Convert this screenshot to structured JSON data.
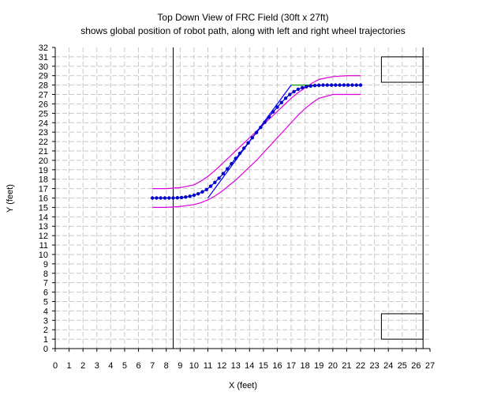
{
  "chart_data": {
    "type": "line",
    "title": "Top Down View of FRC Field (30ft x 27ft)",
    "subtitle": "shows global position of robot path, along with left and right wheel trajectories",
    "xlabel": "X (feet)",
    "ylabel": "Y (feet)",
    "xlim": [
      0,
      27
    ],
    "ylim": [
      0,
      32
    ],
    "xticks": [
      0,
      1,
      2,
      3,
      4,
      5,
      6,
      7,
      8,
      9,
      10,
      11,
      12,
      13,
      14,
      15,
      16,
      17,
      18,
      19,
      20,
      21,
      22,
      23,
      24,
      25,
      26,
      27
    ],
    "yticks": [
      0,
      1,
      2,
      3,
      4,
      5,
      6,
      7,
      8,
      9,
      10,
      11,
      12,
      13,
      14,
      15,
      16,
      17,
      18,
      19,
      20,
      21,
      22,
      23,
      24,
      25,
      26,
      27,
      28,
      29,
      30,
      31,
      32
    ],
    "grid": true,
    "colors": {
      "path": "#0000cc",
      "wheels": "#dd00dd",
      "waypoint_line_blue": "#0000ff",
      "waypoint_line_green": "#009900",
      "field": "#000000",
      "grid": "#c8c8c8"
    },
    "series": [
      {
        "role": "robot-path",
        "x": [
          7.0,
          7.3,
          7.6,
          7.9,
          8.2,
          8.5,
          8.8,
          9.1,
          9.4,
          9.7,
          10.0,
          10.3,
          10.6,
          10.9,
          11.2,
          11.5,
          11.8,
          12.1,
          12.4,
          12.7,
          13.0,
          13.3,
          13.6,
          13.9,
          14.2,
          14.5,
          14.8,
          15.1,
          15.4,
          15.7,
          16.0,
          16.3,
          16.6,
          16.9,
          17.2,
          17.5,
          17.8,
          18.1,
          18.4,
          18.7,
          19.0,
          19.3,
          19.6,
          19.9,
          20.2,
          20.5,
          20.8,
          21.1,
          21.4,
          21.7,
          22.0
        ],
        "y": [
          16.0,
          16.0,
          16.0,
          16.0,
          16.0,
          16.0,
          16.02,
          16.05,
          16.1,
          16.18,
          16.3,
          16.45,
          16.65,
          16.9,
          17.25,
          17.65,
          18.1,
          18.6,
          19.1,
          19.65,
          20.2,
          20.75,
          21.3,
          21.85,
          22.4,
          22.95,
          23.5,
          24.05,
          24.6,
          25.15,
          25.65,
          26.15,
          26.6,
          27.0,
          27.3,
          27.55,
          27.72,
          27.83,
          27.9,
          27.95,
          27.98,
          28.0,
          28.0,
          28.0,
          28.0,
          28.0,
          28.0,
          28.0,
          28.0,
          28.0,
          28.0
        ]
      },
      {
        "role": "left-wheel",
        "x": [
          7.0,
          8.0,
          9.0,
          10.0,
          10.5,
          11.0,
          11.5,
          12.0,
          12.5,
          13.0,
          13.5,
          14.0,
          14.5,
          15.0,
          15.5,
          16.0,
          16.5,
          17.0,
          17.5,
          18.0,
          18.5,
          19.0,
          20.0,
          21.0,
          22.0
        ],
        "y": [
          17.0,
          17.0,
          17.1,
          17.4,
          17.8,
          18.3,
          18.9,
          19.6,
          20.3,
          21.0,
          21.7,
          22.4,
          23.1,
          23.8,
          24.5,
          25.2,
          25.9,
          26.6,
          27.2,
          27.7,
          28.2,
          28.6,
          28.9,
          29.0,
          29.0
        ]
      },
      {
        "role": "right-wheel",
        "x": [
          7.0,
          8.0,
          9.0,
          10.0,
          10.5,
          11.0,
          11.5,
          12.0,
          12.5,
          13.0,
          13.5,
          14.0,
          14.5,
          15.0,
          15.5,
          16.0,
          16.5,
          17.0,
          17.5,
          18.0,
          18.5,
          19.0,
          20.0,
          21.0,
          22.0
        ],
        "y": [
          15.0,
          15.0,
          15.1,
          15.3,
          15.5,
          15.8,
          16.2,
          16.7,
          17.3,
          17.9,
          18.6,
          19.3,
          20.0,
          20.8,
          21.6,
          22.4,
          23.2,
          24.0,
          24.8,
          25.5,
          26.1,
          26.6,
          27.0,
          27.0,
          27.0
        ]
      }
    ],
    "waypoint_lines": [
      {
        "role": "blue-segment",
        "x": [
          11.0,
          17.0
        ],
        "y": [
          16.0,
          28.0
        ]
      },
      {
        "role": "green-segment",
        "x": [
          17.0,
          22.0
        ],
        "y": [
          28.0,
          28.0
        ]
      }
    ],
    "field_lines": [
      {
        "role": "vertical-line",
        "x": [
          8.5,
          8.5
        ],
        "y": [
          0,
          32
        ]
      },
      {
        "role": "field-boundary",
        "x": [
          26.5,
          26.5
        ],
        "y": [
          0,
          32
        ]
      }
    ],
    "field_boxes": [
      {
        "role": "upper-box",
        "x": [
          23.5,
          26.5
        ],
        "y": [
          28.3,
          31.0
        ]
      },
      {
        "role": "lower-box",
        "x": [
          23.5,
          26.5
        ],
        "y": [
          1.0,
          3.7
        ]
      }
    ]
  }
}
